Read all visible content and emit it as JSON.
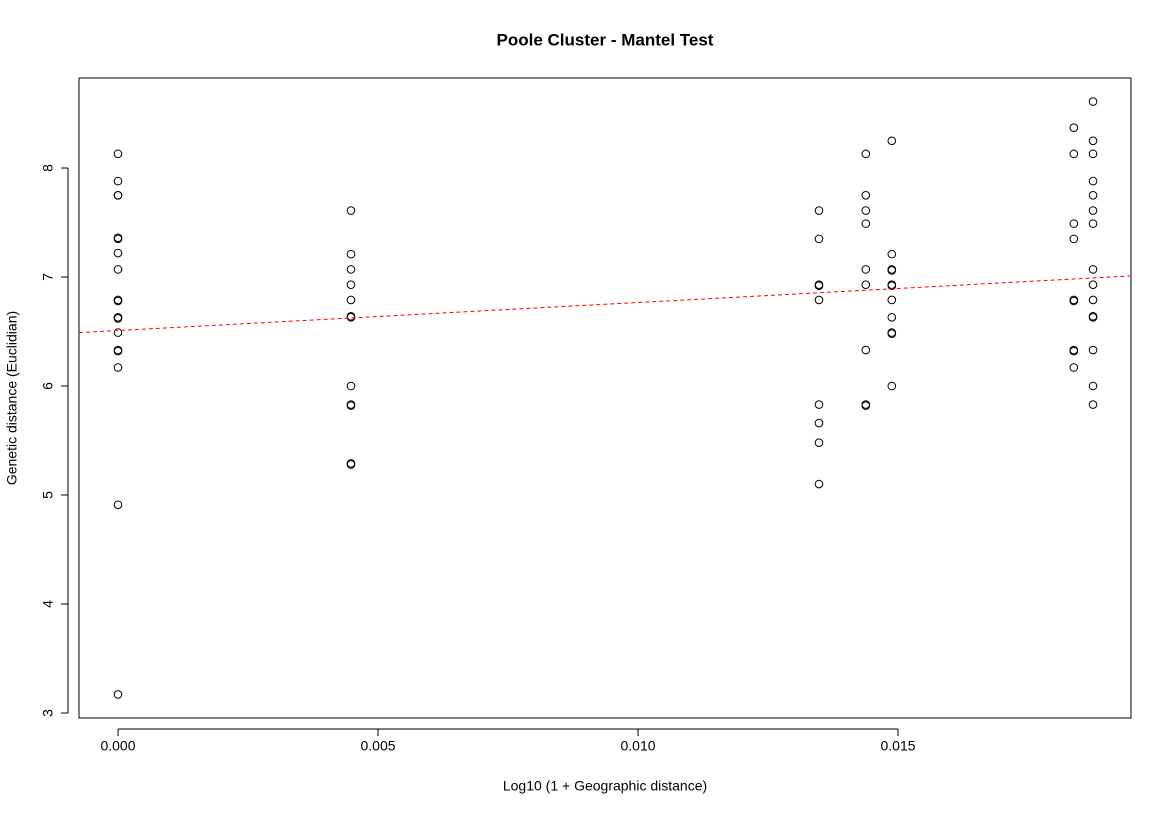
{
  "chart_data": {
    "type": "scatter",
    "title": "Poole Cluster - Mantel Test",
    "x_label": "Log10 (1 + Geographic distance)",
    "y_label": "Genetic distance (Euclidian)",
    "xlim": [
      -0.00075,
      0.01948
    ],
    "ylim": [
      2.954,
      8.826
    ],
    "xticks": [
      {
        "value": 0,
        "label": "0.000"
      },
      {
        "value": 0.005,
        "label": "0.005"
      },
      {
        "value": 0.01,
        "label": "0.010"
      },
      {
        "value": 0.015,
        "label": "0.015"
      }
    ],
    "yticks": [
      3,
      4,
      5,
      6,
      7,
      8
    ],
    "grid": false,
    "color": "#000000",
    "x": [
      0,
      0,
      0,
      0,
      0,
      0,
      0,
      0,
      0,
      0,
      0,
      0,
      0,
      0,
      0,
      0,
      0,
      0,
      0.00448,
      0.00448,
      0.00448,
      0.00448,
      0.00448,
      0.00448,
      0.00448,
      0.00448,
      0.00448,
      0.00448,
      0.00448,
      0.00448,
      0.01348,
      0.01348,
      0.01348,
      0.01348,
      0.01348,
      0.01348,
      0.01348,
      0.01348,
      0.01348,
      0.01438,
      0.01438,
      0.01438,
      0.01438,
      0.01438,
      0.01438,
      0.01438,
      0.01438,
      0.01438,
      0.01488,
      0.01488,
      0.01488,
      0.01488,
      0.01488,
      0.01488,
      0.01488,
      0.01488,
      0.01488,
      0.01488,
      0.01488,
      0.01838,
      0.01838,
      0.01838,
      0.01838,
      0.01838,
      0.01838,
      0.01838,
      0.01838,
      0.01838,
      0.01875,
      0.01875,
      0.01875,
      0.01875,
      0.01875,
      0.01875,
      0.01875,
      0.01875,
      0.01875,
      0.01875,
      0.01875,
      0.01875,
      0.01875,
      0.01875,
      0.01875
    ],
    "y": [
      8.13,
      7.88,
      7.75,
      7.75,
      7.36,
      7.35,
      7.22,
      7.07,
      6.79,
      6.78,
      6.63,
      6.62,
      6.49,
      6.33,
      6.32,
      6.17,
      4.91,
      3.17,
      7.61,
      7.21,
      7.07,
      6.93,
      6.79,
      6.64,
      6.63,
      6.0,
      5.83,
      5.82,
      5.29,
      5.28,
      7.61,
      7.35,
      6.93,
      6.92,
      6.79,
      5.83,
      5.66,
      5.48,
      5.1,
      8.13,
      7.75,
      7.61,
      7.49,
      7.07,
      6.93,
      6.33,
      5.83,
      5.82,
      8.25,
      7.21,
      7.07,
      7.06,
      6.93,
      6.92,
      6.79,
      6.63,
      6.49,
      6.48,
      6.0,
      8.37,
      8.13,
      7.49,
      7.35,
      6.79,
      6.78,
      6.33,
      6.32,
      6.17,
      8.61,
      8.25,
      8.13,
      7.88,
      7.75,
      7.61,
      7.49,
      7.07,
      6.93,
      6.79,
      6.64,
      6.63,
      6.33,
      6.0,
      5.83
    ],
    "fit": {
      "x": [
        -0.00075,
        0.01948
      ],
      "y": [
        6.49,
        7.01
      ],
      "color": "#ff0000",
      "dashed": true
    }
  }
}
